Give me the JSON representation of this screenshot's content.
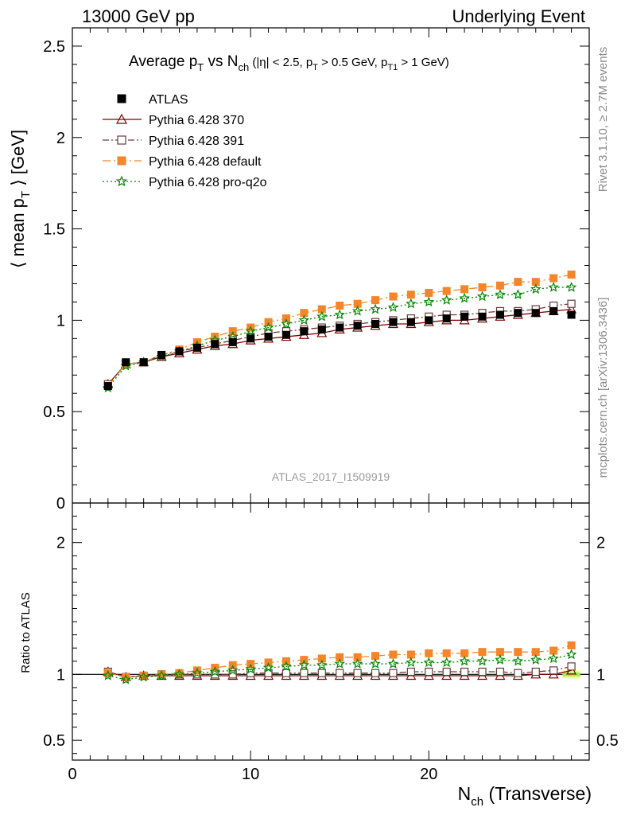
{
  "header": {
    "left": "13000 GeV pp",
    "right": "Underlying Event"
  },
  "plot": {
    "title_main": "Average p",
    "title_sub": "T",
    "title_vs": " vs N",
    "title_ch": "ch",
    "title_cuts": " (|η| < 2.5, p",
    "title_cut_sub1": "T",
    "title_cut_mid": " > 0.5 GeV, p",
    "title_cut_sub2": "T1",
    "title_cut_end": " > 1 GeV)",
    "ylabel_main": "⟨ mean p",
    "ylabel_sub": "T",
    "ylabel_end": " ⟩ [GeV]",
    "ratio_ylabel": "Ratio to ATLAS",
    "xlabel_main": "N",
    "xlabel_sub": "ch",
    "xlabel_end": " (Transverse)",
    "analysis_id": "ATLAS_2017_I1509919",
    "side_label_top": "Rivet 3.1.10, ≥ 2.7M events",
    "side_label_bottom": "mcplots.cern.ch [arXiv:1306.3436]"
  },
  "chart_data": {
    "type": "line",
    "x": [
      2,
      3,
      4,
      5,
      6,
      7,
      8,
      9,
      10,
      11,
      12,
      13,
      14,
      15,
      16,
      17,
      18,
      19,
      20,
      21,
      22,
      23,
      24,
      25,
      26,
      27,
      28
    ],
    "xlim": [
      0,
      29
    ],
    "ylim": [
      0,
      2.6
    ],
    "ratio_ylim": [
      0.35,
      2.3
    ],
    "xticks": [
      "0",
      "10",
      "20"
    ],
    "yticks": [
      "0",
      "0.5",
      "1",
      "1.5",
      "2",
      "2.5"
    ],
    "ratio_yticks": [
      "0.5",
      "1",
      "2"
    ],
    "grid": false,
    "legend_position": "top-left",
    "series": [
      {
        "name": "ATLAS",
        "color": "#000000",
        "marker": "filled-square",
        "values": [
          0.64,
          0.77,
          0.77,
          0.81,
          0.83,
          0.85,
          0.87,
          0.88,
          0.9,
          0.91,
          0.92,
          0.94,
          0.95,
          0.96,
          0.97,
          0.98,
          0.99,
          0.99,
          1.0,
          1.01,
          1.02,
          1.02,
          1.03,
          1.04,
          1.04,
          1.05,
          1.03
        ],
        "ratio": [
          1.0,
          1.0,
          1.0,
          1.0,
          1.0,
          1.0,
          1.0,
          1.0,
          1.0,
          1.0,
          1.0,
          1.0,
          1.0,
          1.0,
          1.0,
          1.0,
          1.0,
          1.0,
          1.0,
          1.0,
          1.0,
          1.0,
          1.0,
          1.0,
          1.0,
          1.0,
          1.0
        ]
      },
      {
        "name": "Pythia 6.428 370",
        "color": "#800000",
        "marker": "open-triangle",
        "dash": "",
        "values": [
          0.65,
          0.76,
          0.77,
          0.8,
          0.82,
          0.84,
          0.86,
          0.87,
          0.89,
          0.9,
          0.91,
          0.92,
          0.93,
          0.95,
          0.96,
          0.97,
          0.98,
          0.98,
          0.99,
          1.0,
          1.0,
          1.01,
          1.02,
          1.03,
          1.04,
          1.05,
          1.06
        ],
        "ratio": [
          1.02,
          0.98,
          0.99,
          0.99,
          0.99,
          0.99,
          0.99,
          0.99,
          0.99,
          0.99,
          0.99,
          0.99,
          0.99,
          0.99,
          0.99,
          0.99,
          0.99,
          0.99,
          0.99,
          0.99,
          0.99,
          0.99,
          0.99,
          0.99,
          1.0,
          1.0,
          1.03
        ]
      },
      {
        "name": "Pythia 6.428 391",
        "color": "#6b3a3a",
        "marker": "open-square",
        "dash": "8,3,2,3",
        "values": [
          0.65,
          0.76,
          0.77,
          0.81,
          0.83,
          0.85,
          0.87,
          0.89,
          0.91,
          0.93,
          0.94,
          0.95,
          0.96,
          0.97,
          0.98,
          0.99,
          1.0,
          1.01,
          1.02,
          1.03,
          1.03,
          1.04,
          1.05,
          1.05,
          1.06,
          1.08,
          1.09
        ],
        "ratio": [
          1.02,
          0.98,
          0.99,
          1.0,
          1.0,
          1.0,
          1.0,
          1.0,
          1.01,
          1.01,
          1.01,
          1.01,
          1.01,
          1.01,
          1.01,
          1.01,
          1.01,
          1.02,
          1.02,
          1.02,
          1.02,
          1.02,
          1.02,
          1.01,
          1.02,
          1.03,
          1.06
        ]
      },
      {
        "name": "Pythia 6.428 default",
        "color": "#f5852a",
        "marker": "filled-square",
        "dash": "10,4,2,4",
        "values": [
          0.64,
          0.76,
          0.77,
          0.81,
          0.84,
          0.88,
          0.91,
          0.94,
          0.96,
          0.99,
          1.01,
          1.04,
          1.06,
          1.08,
          1.09,
          1.11,
          1.13,
          1.14,
          1.15,
          1.16,
          1.17,
          1.18,
          1.19,
          1.21,
          1.21,
          1.23,
          1.25
        ],
        "ratio": [
          1.01,
          0.98,
          0.99,
          1.0,
          1.01,
          1.03,
          1.05,
          1.07,
          1.08,
          1.09,
          1.1,
          1.11,
          1.12,
          1.13,
          1.13,
          1.14,
          1.15,
          1.15,
          1.16,
          1.16,
          1.16,
          1.17,
          1.17,
          1.17,
          1.17,
          1.18,
          1.22
        ]
      },
      {
        "name": "Pythia 6.428 pro-q2o",
        "color": "#008800",
        "marker": "open-star",
        "dash": "2,3",
        "values": [
          0.63,
          0.75,
          0.77,
          0.8,
          0.83,
          0.86,
          0.89,
          0.91,
          0.94,
          0.96,
          0.98,
          1.0,
          1.02,
          1.03,
          1.05,
          1.06,
          1.07,
          1.09,
          1.1,
          1.11,
          1.12,
          1.13,
          1.14,
          1.14,
          1.17,
          1.18,
          1.18
        ],
        "ratio": [
          0.99,
          0.96,
          0.98,
          0.99,
          1.0,
          1.01,
          1.02,
          1.03,
          1.04,
          1.05,
          1.06,
          1.07,
          1.07,
          1.08,
          1.08,
          1.08,
          1.08,
          1.09,
          1.09,
          1.09,
          1.1,
          1.1,
          1.11,
          1.1,
          1.11,
          1.12,
          1.15
        ]
      }
    ]
  }
}
